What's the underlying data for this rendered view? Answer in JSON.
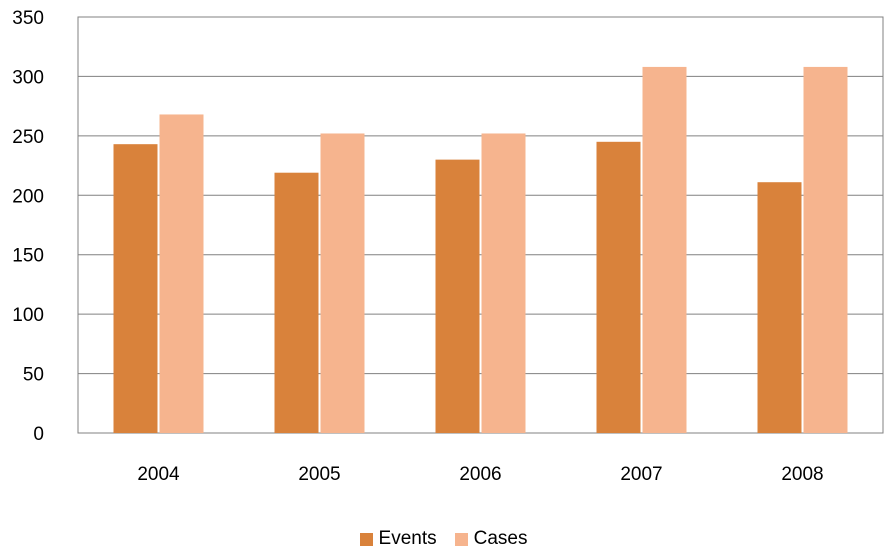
{
  "chart_data": {
    "type": "bar",
    "categories": [
      "2004",
      "2005",
      "2006",
      "2007",
      "2008"
    ],
    "series": [
      {
        "name": "Events",
        "values": [
          243,
          219,
          230,
          245,
          211
        ],
        "color": "#d9823b"
      },
      {
        "name": "Cases",
        "values": [
          268,
          252,
          252,
          308,
          308
        ],
        "color": "#f6b48e"
      }
    ],
    "ylim": [
      0,
      350
    ],
    "yticks": [
      "0",
      "50",
      "100",
      "150",
      "200",
      "250",
      "300",
      "350"
    ],
    "grid": true,
    "legend_position": "bottom"
  }
}
